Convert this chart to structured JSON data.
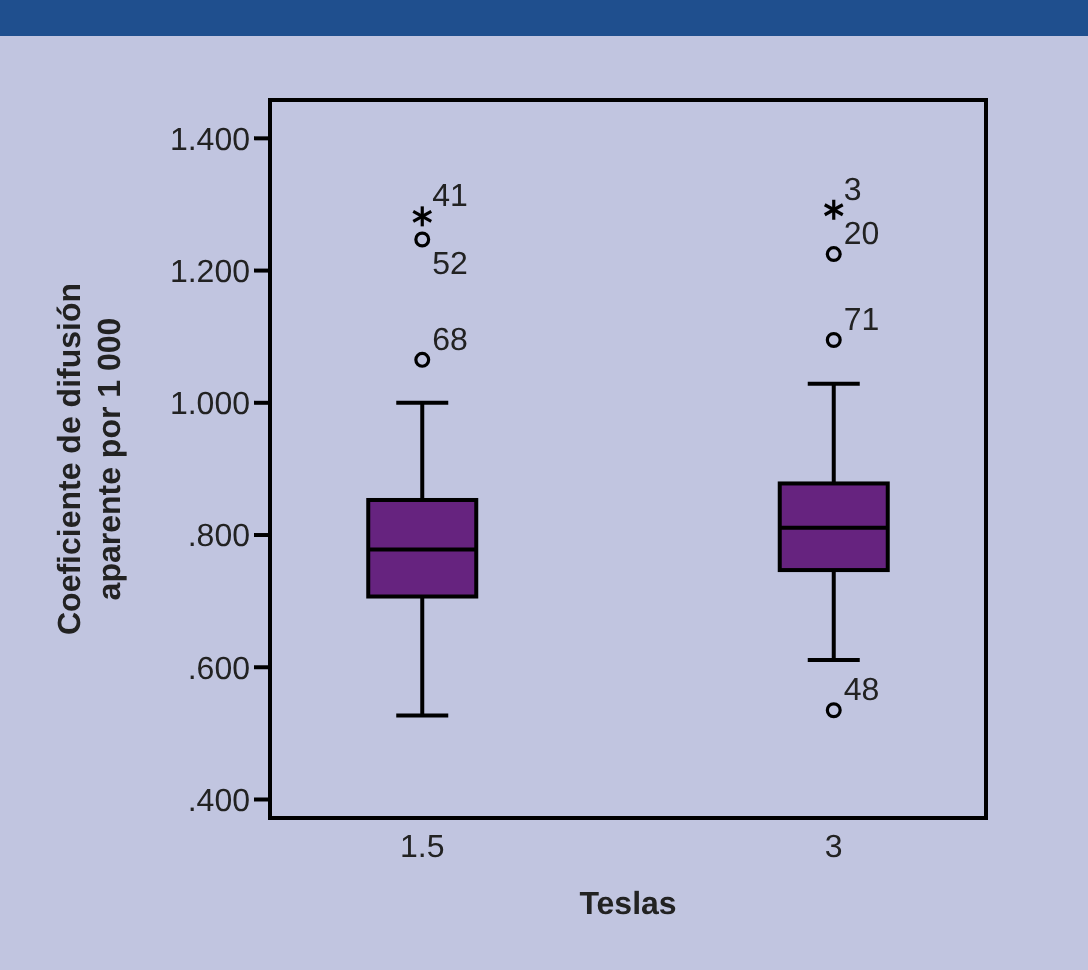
{
  "chart_data": {
    "type": "box",
    "categories": [
      "1.5",
      "3"
    ],
    "xlabel": "Teslas",
    "ylabel": "Coeficiente de difusión aparente por 1 000",
    "ylim": [
      0.372,
      1.458
    ],
    "yticks": [
      {
        "value": 0.4,
        "label": ".400"
      },
      {
        "value": 0.6,
        "label": ".600"
      },
      {
        "value": 0.8,
        "label": ".800"
      },
      {
        "value": 1.0,
        "label": "1.000"
      },
      {
        "value": 1.2,
        "label": "1.200"
      },
      {
        "value": 1.4,
        "label": "1.400"
      }
    ],
    "series": [
      {
        "color": "#66237f",
        "boxes": [
          {
            "low": 0.527,
            "q1": 0.707,
            "median": 0.778,
            "q3": 0.853,
            "high": 1.0
          },
          {
            "low": 0.611,
            "q1": 0.747,
            "median": 0.811,
            "q3": 0.878,
            "high": 1.029
          }
        ]
      },
      {
        "type": "scatter",
        "marker": "circle",
        "color": "#000000",
        "x": [
          "1.5",
          "1.5",
          "3",
          "3",
          "3"
        ],
        "values": [
          1.065,
          1.247,
          1.095,
          1.225,
          0.535
        ]
      },
      {
        "type": "scatter",
        "marker": "cross",
        "color": "#000000",
        "x": [
          "1.5",
          "3"
        ],
        "values": [
          1.282,
          1.292
        ]
      }
    ],
    "annotations": [
      {
        "text": "41",
        "x": "1.5",
        "y": 1.282
      },
      {
        "text": "52",
        "x": "1.5",
        "y": 1.247
      },
      {
        "text": "68",
        "x": "1.5",
        "y": 1.065
      },
      {
        "text": "3",
        "x": "3",
        "y": 1.292
      },
      {
        "text": "20",
        "x": "3",
        "y": 1.225
      },
      {
        "text": "71",
        "x": "3",
        "y": 1.095
      },
      {
        "text": "48",
        "x": "3",
        "y": 0.535
      }
    ]
  }
}
